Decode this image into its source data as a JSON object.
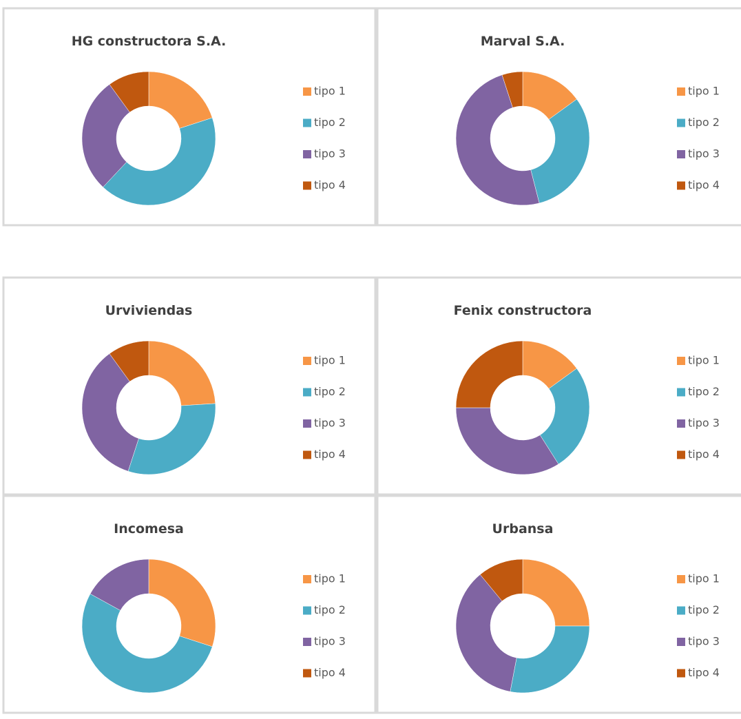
{
  "chart_data": [
    {
      "type": "donut",
      "title": "HG constructora S.A.",
      "categories": [
        "tipo 1",
        "tipo 2",
        "tipo 3",
        "tipo 4"
      ],
      "values": [
        20,
        42,
        28,
        10
      ],
      "colors": [
        "#f79646",
        "#4bacc6",
        "#8064a2",
        "#c0580f"
      ]
    },
    {
      "type": "donut",
      "title": "Marval S.A.",
      "categories": [
        "tipo 1",
        "tipo 2",
        "tipo 3",
        "tipo 4"
      ],
      "values": [
        15,
        31,
        49,
        5
      ],
      "colors": [
        "#f79646",
        "#4bacc6",
        "#8064a2",
        "#c0580f"
      ]
    },
    {
      "type": "donut",
      "title": "Urviviendas",
      "categories": [
        "tipo 1",
        "tipo 2",
        "tipo 3",
        "tipo 4"
      ],
      "values": [
        24,
        31,
        35,
        10
      ],
      "colors": [
        "#f79646",
        "#4bacc6",
        "#8064a2",
        "#c0580f"
      ]
    },
    {
      "type": "donut",
      "title": "Fenix constructora",
      "categories": [
        "tipo 1",
        "tipo 2",
        "tipo 3",
        "tipo 4"
      ],
      "values": [
        15,
        26,
        34,
        25
      ],
      "colors": [
        "#f79646",
        "#4bacc6",
        "#8064a2",
        "#c0580f"
      ]
    },
    {
      "type": "donut",
      "title": "Incomesa",
      "categories": [
        "tipo 1",
        "tipo 2",
        "tipo 3",
        "tipo 4"
      ],
      "values": [
        30,
        53,
        17,
        0
      ],
      "colors": [
        "#f79646",
        "#4bacc6",
        "#8064a2",
        "#c0580f"
      ]
    },
    {
      "type": "donut",
      "title": "Urbansa",
      "categories": [
        "tipo 1",
        "tipo 2",
        "tipo 3",
        "tipo 4"
      ],
      "values": [
        25,
        28,
        36,
        11
      ],
      "colors": [
        "#f79646",
        "#4bacc6",
        "#8064a2",
        "#c0580f"
      ]
    }
  ]
}
